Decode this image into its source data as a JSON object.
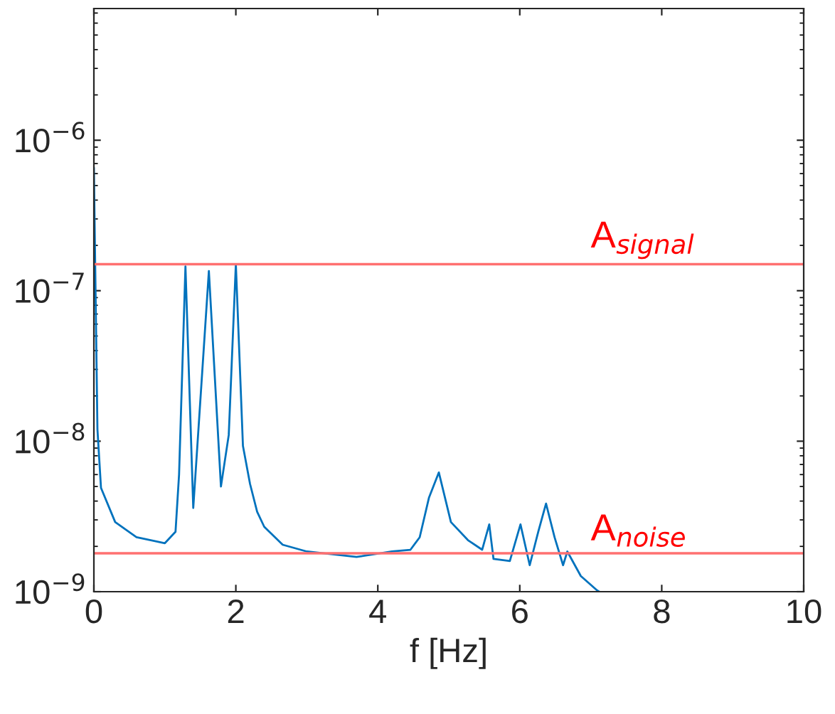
{
  "chart_data": {
    "type": "line",
    "xlabel": "f [Hz]",
    "log": "y",
    "grid": false,
    "legend": false,
    "marker": "none",
    "line_style": "solid",
    "xlim": [
      0,
      10
    ],
    "xticks": [
      0,
      2,
      4,
      6,
      8,
      10
    ],
    "ylim": [
      1e-09,
      7.5e-06
    ],
    "yticks": [
      {
        "value": 1e-09,
        "label": "10$^{−9}$"
      },
      {
        "value": 1e-08,
        "label": "10$^{−8}$"
      },
      {
        "value": 1e-07,
        "label": "10$^{−7}$"
      },
      {
        "value": 1e-06,
        "label": "10$^{−6}$"
      }
    ],
    "series": [
      {
        "color": "#0072bd",
        "x": [
          0,
          0.05,
          0.1,
          0.3,
          0.6,
          1.0,
          1.15,
          1.2,
          1.29,
          1.4,
          1.62,
          1.79,
          1.9,
          2.0,
          2.1,
          2.2,
          2.3,
          2.4,
          2.66,
          3.0,
          3.7,
          4.2,
          4.46,
          4.59,
          4.72,
          4.86,
          5.03,
          5.27,
          5.47,
          5.57,
          5.63,
          5.86,
          6.01,
          6.14,
          6.26,
          6.37,
          6.49,
          6.61,
          6.67,
          6.86,
          7.09,
          7.12
        ],
        "values": [
          6.5e-07,
          1.2e-08,
          4.9e-09,
          2.9e-09,
          2.3e-09,
          2.1e-09,
          2.5e-09,
          6e-09,
          1.45e-07,
          3.6e-09,
          1.35e-07,
          5e-09,
          1.1e-08,
          1.5e-07,
          9.3e-09,
          5.2e-09,
          3.4e-09,
          2.7e-09,
          2.05e-09,
          1.85e-09,
          1.7e-09,
          1.85e-09,
          1.9e-09,
          2.3e-09,
          4.2e-09,
          6.2e-09,
          2.9e-09,
          2.2e-09,
          1.9e-09,
          2.8e-09,
          1.65e-09,
          1.6e-09,
          2.8e-09,
          1.5e-09,
          2.5e-09,
          3.85e-09,
          2.3e-09,
          1.5e-09,
          1.85e-09,
          1.27e-09,
          1.02e-09,
          1e-09
        ]
      }
    ],
    "ref_lines": [
      {
        "axis": "y",
        "value": 1.5e-07,
        "label": "A$_{signal}$",
        "color": "#ff7070"
      },
      {
        "axis": "y",
        "value": 1.8e-09,
        "label": "A$_{noise}$",
        "color": "#ff7070"
      }
    ]
  }
}
